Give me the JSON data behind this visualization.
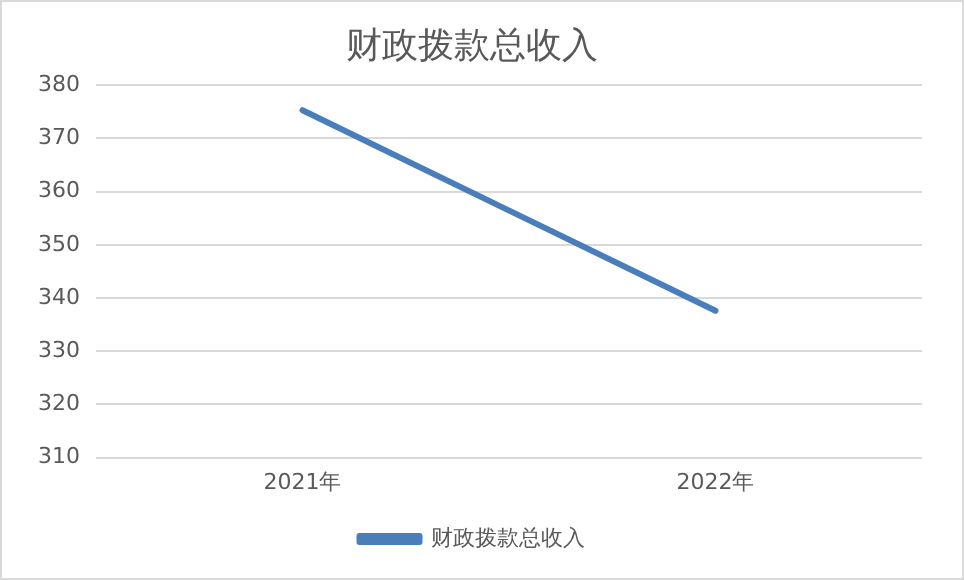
{
  "chart_data": {
    "type": "line",
    "title": "财政拨款总收入",
    "categories": [
      "2021年",
      "2022年"
    ],
    "series": [
      {
        "name": "财政拨款总收入",
        "color": "#4a7ebb",
        "values": [
          375.3,
          337.6
        ]
      }
    ],
    "ylim": [
      310,
      380
    ],
    "yticks": [
      310,
      320,
      330,
      340,
      350,
      360,
      370,
      380
    ],
    "grid": "y",
    "legend": "bottom",
    "marker": "none"
  }
}
